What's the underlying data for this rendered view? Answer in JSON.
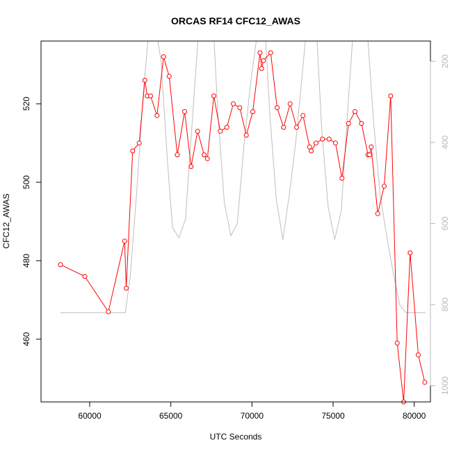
{
  "chart_data": {
    "type": "line",
    "title": "ORCAS RF14 CFC12_AWAS",
    "xlabel": "UTC Seconds",
    "ylabel": "CFC12_AWAS",
    "xlim": [
      57000,
      81000
    ],
    "ylim": [
      444,
      536
    ],
    "x_ticks": [
      60000,
      65000,
      70000,
      75000,
      80000
    ],
    "y_ticks": [
      460,
      480,
      500,
      520
    ],
    "y2lim": [
      1040,
      150
    ],
    "y2_ticks": [
      200,
      400,
      600,
      800,
      1000
    ],
    "grid": false,
    "legend": "none",
    "colors": {
      "series": "#ff0000",
      "secondary": "#bebebe",
      "axis": "#000000",
      "axis2_text": "#b8b8b8"
    },
    "series": [
      {
        "color": "#ff0000",
        "markers": "open-circle",
        "x": [
          58200,
          59700,
          61150,
          62150,
          62250,
          62650,
          63050,
          63400,
          63550,
          63750,
          64150,
          64550,
          64900,
          65400,
          65850,
          66250,
          66650,
          67050,
          67250,
          67650,
          68050,
          68450,
          68850,
          69250,
          69650,
          70050,
          70500,
          70600,
          70700,
          71150,
          71550,
          71950,
          72350,
          72750,
          73150,
          73550,
          73650,
          73950,
          74350,
          74750,
          75150,
          75550,
          75950,
          76350,
          76750,
          77150,
          77250,
          77350,
          77750,
          78150,
          78550,
          78950,
          79350,
          79750,
          80250,
          80650
        ],
        "y": [
          479,
          476,
          467,
          485,
          473,
          508,
          510,
          526,
          522,
          522,
          517,
          532,
          527,
          507,
          518,
          504,
          513,
          507,
          506,
          522,
          513,
          514,
          520,
          519,
          512,
          518,
          533,
          529,
          531,
          533,
          519,
          514,
          520,
          514,
          517,
          509,
          508,
          510,
          511,
          511,
          510,
          501,
          515,
          518,
          515,
          507,
          507,
          509,
          492,
          499,
          522,
          459,
          444,
          482,
          456,
          449
        ]
      },
      {
        "color": "#bebebe",
        "axis": "right",
        "x": [
          58200,
          62200,
          62500,
          62900,
          63300,
          63700,
          64000,
          64400,
          64800,
          65100,
          65500,
          65900,
          66300,
          66700,
          67100,
          67500,
          67900,
          68300,
          68700,
          69100,
          69500,
          69900,
          70300,
          70700,
          71100,
          71500,
          71900,
          72300,
          72700,
          73100,
          73500,
          73900,
          74300,
          74700,
          75100,
          75500,
          75900,
          76300,
          76700,
          77100,
          77500,
          77900,
          78300,
          78700,
          79100,
          79500,
          80700
        ],
        "y": [
          820,
          820,
          730,
          520,
          280,
          100,
          100,
          200,
          450,
          610,
          635,
          590,
          360,
          130,
          20,
          20,
          330,
          550,
          630,
          600,
          410,
          260,
          140,
          40,
          330,
          540,
          640,
          530,
          400,
          230,
          60,
          60,
          370,
          560,
          640,
          570,
          320,
          90,
          70,
          120,
          350,
          530,
          630,
          720,
          800,
          820,
          820
        ]
      }
    ]
  }
}
